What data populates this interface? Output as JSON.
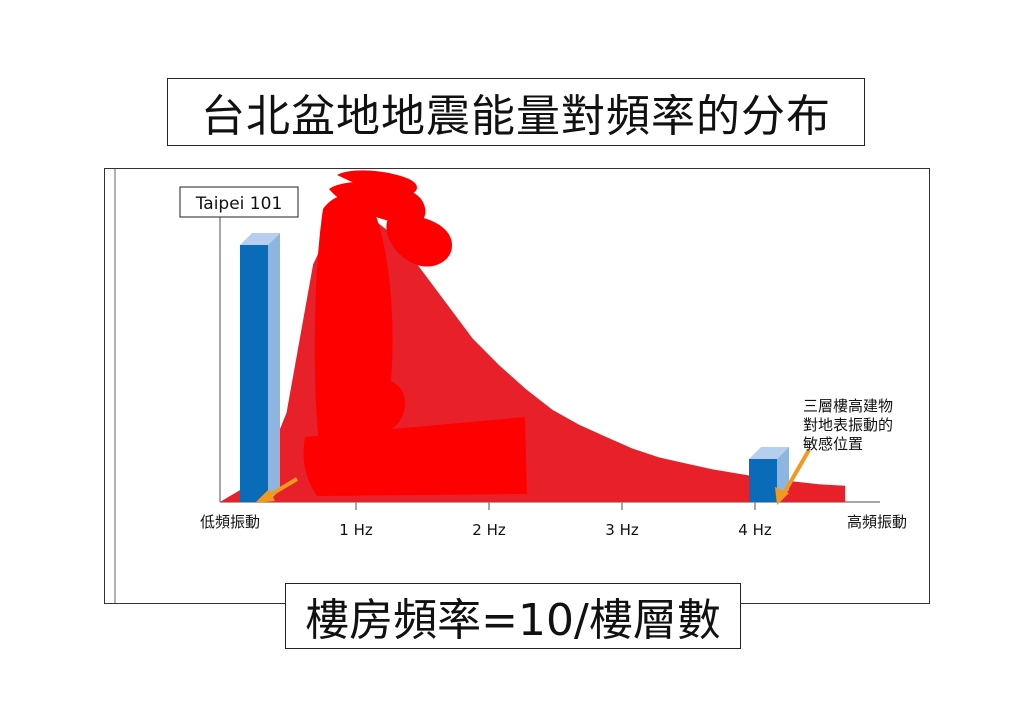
{
  "title": "台北盆地地震能量對頻率的分布",
  "formula": "樓房頻率=10/樓層數",
  "colors": {
    "curve": "#e8202a",
    "scribble": "#ff0000",
    "bar_front": "#0a6cb8",
    "bar_side": "#8db5e0",
    "bar_top": "#b7cfee",
    "arrow": "#f29a1f",
    "axis": "#888888"
  },
  "chart_data": {
    "type": "area",
    "x_ticks": [
      "1 Hz",
      "2 Hz",
      "3 Hz",
      "4 Hz"
    ],
    "x_left_label": "低頻振動",
    "x_right_label": "高頻振動",
    "xlim": [
      0,
      5
    ],
    "ylim": [
      0,
      1
    ],
    "series": [
      {
        "x": [
          0.0,
          0.3,
          0.5,
          0.7,
          0.9,
          1.1,
          1.3,
          1.5,
          1.7,
          1.9,
          2.1,
          2.3,
          2.5,
          2.7,
          2.9,
          3.1,
          3.3,
          3.5,
          3.7,
          3.9,
          4.1,
          4.3,
          4.5,
          4.7
        ],
        "y": [
          0.0,
          0.08,
          0.3,
          0.8,
          0.99,
          0.97,
          0.9,
          0.79,
          0.67,
          0.55,
          0.46,
          0.38,
          0.31,
          0.26,
          0.22,
          0.18,
          0.15,
          0.13,
          0.11,
          0.095,
          0.08,
          0.07,
          0.06,
          0.055
        ]
      }
    ],
    "annotations": [
      {
        "label": "Taipei 101",
        "x": 0.28,
        "bar_height": 0.81
      },
      {
        "label_lines": [
          "三層樓高建物",
          "對地表振動的",
          "敏感位置"
        ],
        "x": 4.0,
        "bar_height": 0.13
      }
    ]
  }
}
